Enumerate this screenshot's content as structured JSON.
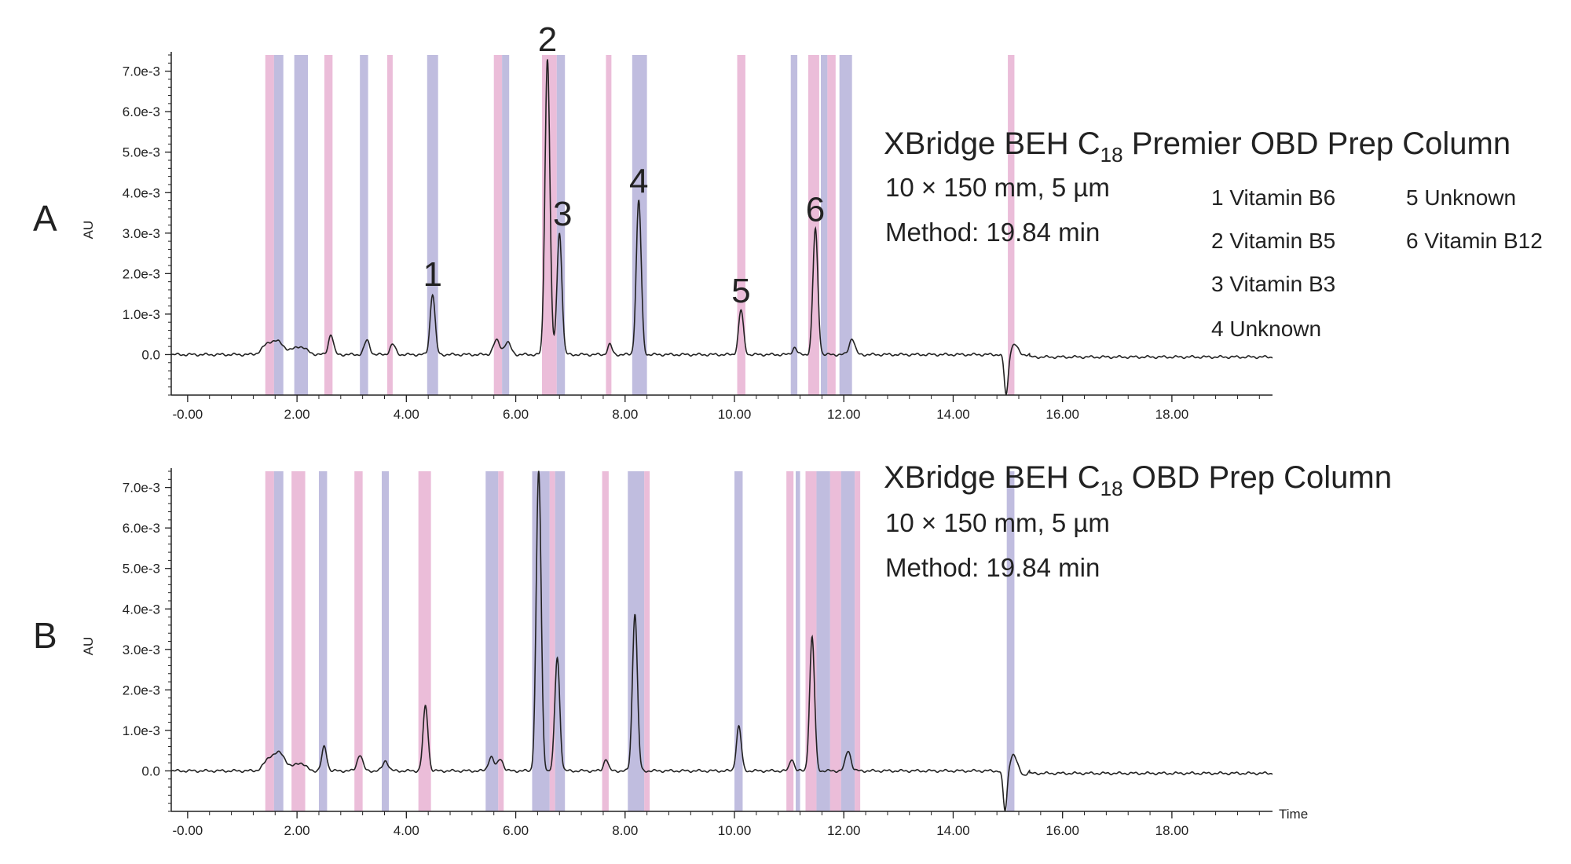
{
  "colors": {
    "pink": "#e9b6d5",
    "purple": "#b9b6dc",
    "trace": "#222222"
  },
  "legend": [
    "1 Vitamin B6",
    "2 Vitamin B5",
    "3 Vitamin B3",
    "4 Unknown",
    "5 Unknown",
    "6 Vitamin B12"
  ],
  "chart_data": [
    {
      "type": "line",
      "panel": "A",
      "ylabel": "AU",
      "xlabel": "",
      "column": {
        "title_pre": "XBridge BEH C",
        "title_sub": "18",
        "title_post": " Premier OBD Prep Column",
        "size": "10 × 150 mm, 5 µm",
        "method": "Method: 19.84 min"
      },
      "xlim": [
        -0.3,
        19.84
      ],
      "ylim": [
        -0.001,
        0.0074
      ],
      "x_ticks": [
        0,
        2,
        4,
        6,
        8,
        10,
        12,
        14,
        16,
        18
      ],
      "x_tick_labels": [
        "-0.00",
        "2.00",
        "4.00",
        "6.00",
        "8.00",
        "10.00",
        "12.00",
        "14.00",
        "16.00",
        "18.00"
      ],
      "y_ticks": [
        0.0,
        0.001,
        0.002,
        0.003,
        0.004,
        0.005,
        0.006,
        0.007
      ],
      "y_tick_labels": [
        "0.0",
        "1.0e-3",
        "2.0e-3",
        "3.0e-3",
        "4.0e-3",
        "5.0e-3",
        "6.0e-3",
        "7.0e-3"
      ],
      "peaks": [
        {
          "label": "1",
          "x": 4.48,
          "y": 0.0015
        },
        {
          "label": "2",
          "x": 6.58,
          "y": 0.0073
        },
        {
          "label": "3",
          "x": 6.8,
          "y": 0.003
        },
        {
          "label": "4",
          "x": 8.25,
          "y": 0.0038
        },
        {
          "label": "5",
          "x": 10.12,
          "y": 0.0011
        },
        {
          "label": "6",
          "x": 11.48,
          "y": 0.0031
        }
      ],
      "minor_peaks": [
        {
          "x": 1.45,
          "y": 0.0002,
          "w": 0.1
        },
        {
          "x": 1.65,
          "y": 0.0003,
          "w": 0.12
        },
        {
          "x": 2.05,
          "y": 0.0002,
          "w": 0.12
        },
        {
          "x": 2.62,
          "y": 0.0005,
          "w": 0.045
        },
        {
          "x": 3.28,
          "y": 0.00035,
          "w": 0.05
        },
        {
          "x": 3.75,
          "y": 0.00025,
          "w": 0.05
        },
        {
          "x": 5.65,
          "y": 0.00035,
          "w": 0.06
        },
        {
          "x": 5.85,
          "y": 0.0003,
          "w": 0.06
        },
        {
          "x": 7.72,
          "y": 0.00025,
          "w": 0.04
        },
        {
          "x": 11.1,
          "y": 0.00018,
          "w": 0.04
        },
        {
          "x": 12.15,
          "y": 0.0004,
          "w": 0.05
        }
      ],
      "dips": [
        {
          "x": 14.97,
          "y": -0.001,
          "w": 0.035
        },
        {
          "x": 15.12,
          "y": 0.00025,
          "w": 0.06
        }
      ],
      "bands": [
        {
          "x0": 1.42,
          "x1": 1.58,
          "c": "pink"
        },
        {
          "x0": 1.58,
          "x1": 1.75,
          "c": "purple"
        },
        {
          "x0": 1.95,
          "x1": 2.2,
          "c": "purple"
        },
        {
          "x0": 2.5,
          "x1": 2.65,
          "c": "pink"
        },
        {
          "x0": 3.15,
          "x1": 3.3,
          "c": "purple"
        },
        {
          "x0": 3.65,
          "x1": 3.75,
          "c": "pink"
        },
        {
          "x0": 4.38,
          "x1": 4.58,
          "c": "purple"
        },
        {
          "x0": 5.6,
          "x1": 5.75,
          "c": "pink"
        },
        {
          "x0": 5.75,
          "x1": 5.88,
          "c": "purple"
        },
        {
          "x0": 6.48,
          "x1": 6.75,
          "c": "pink"
        },
        {
          "x0": 6.75,
          "x1": 6.9,
          "c": "purple"
        },
        {
          "x0": 7.65,
          "x1": 7.75,
          "c": "pink"
        },
        {
          "x0": 8.13,
          "x1": 8.4,
          "c": "purple"
        },
        {
          "x0": 10.05,
          "x1": 10.2,
          "c": "pink"
        },
        {
          "x0": 11.03,
          "x1": 11.15,
          "c": "purple"
        },
        {
          "x0": 11.35,
          "x1": 11.55,
          "c": "pink"
        },
        {
          "x0": 11.58,
          "x1": 11.7,
          "c": "purple"
        },
        {
          "x0": 11.7,
          "x1": 11.85,
          "c": "pink"
        },
        {
          "x0": 11.92,
          "x1": 12.15,
          "c": "purple"
        },
        {
          "x0": 15.0,
          "x1": 15.12,
          "c": "pink"
        }
      ]
    },
    {
      "type": "line",
      "panel": "B",
      "ylabel": "AU",
      "xlabel": "Time",
      "column": {
        "title_pre": "XBridge BEH C",
        "title_sub": "18",
        "title_post": " OBD Prep Column",
        "size": "10 × 150 mm, 5 µm",
        "method": "Method: 19.84 min"
      },
      "xlim": [
        -0.3,
        19.84
      ],
      "ylim": [
        -0.001,
        0.0074
      ],
      "x_ticks": [
        0,
        2,
        4,
        6,
        8,
        10,
        12,
        14,
        16,
        18
      ],
      "x_tick_labels": [
        "-0.00",
        "2.00",
        "4.00",
        "6.00",
        "8.00",
        "10.00",
        "12.00",
        "14.00",
        "16.00",
        "18.00"
      ],
      "y_ticks": [
        0.0,
        0.001,
        0.002,
        0.003,
        0.004,
        0.005,
        0.006,
        0.007
      ],
      "y_tick_labels": [
        "0.0",
        "1.0e-3",
        "2.0e-3",
        "3.0e-3",
        "4.0e-3",
        "5.0e-3",
        "6.0e-3",
        "7.0e-3"
      ],
      "peaks": [
        {
          "label": "",
          "x": 4.35,
          "y": 0.0016
        },
        {
          "label": "",
          "x": 6.42,
          "y": 0.0074
        },
        {
          "label": "",
          "x": 6.76,
          "y": 0.0028
        },
        {
          "label": "",
          "x": 8.18,
          "y": 0.0039
        },
        {
          "label": "",
          "x": 10.08,
          "y": 0.0011
        },
        {
          "label": "",
          "x": 11.42,
          "y": 0.0033
        }
      ],
      "minor_peaks": [
        {
          "x": 1.5,
          "y": 0.0003,
          "w": 0.1
        },
        {
          "x": 1.7,
          "y": 0.0004,
          "w": 0.1
        },
        {
          "x": 2.05,
          "y": 0.0002,
          "w": 0.1
        },
        {
          "x": 2.5,
          "y": 0.0006,
          "w": 0.045
        },
        {
          "x": 3.15,
          "y": 0.0004,
          "w": 0.05
        },
        {
          "x": 3.62,
          "y": 0.00025,
          "w": 0.05
        },
        {
          "x": 5.55,
          "y": 0.00035,
          "w": 0.05
        },
        {
          "x": 5.72,
          "y": 0.0003,
          "w": 0.05
        },
        {
          "x": 7.65,
          "y": 0.0003,
          "w": 0.04
        },
        {
          "x": 11.05,
          "y": 0.0003,
          "w": 0.04
        },
        {
          "x": 12.08,
          "y": 0.0005,
          "w": 0.05
        }
      ],
      "dips": [
        {
          "x": 14.95,
          "y": -0.001,
          "w": 0.035
        },
        {
          "x": 15.1,
          "y": 0.0004,
          "w": 0.06
        },
        {
          "x": 15.3,
          "y": -0.0001,
          "w": 0.05
        }
      ],
      "bands": [
        {
          "x0": 1.42,
          "x1": 1.58,
          "c": "pink"
        },
        {
          "x0": 1.58,
          "x1": 1.75,
          "c": "purple"
        },
        {
          "x0": 1.9,
          "x1": 2.15,
          "c": "pink"
        },
        {
          "x0": 2.4,
          "x1": 2.55,
          "c": "purple"
        },
        {
          "x0": 3.05,
          "x1": 3.2,
          "c": "pink"
        },
        {
          "x0": 3.55,
          "x1": 3.68,
          "c": "purple"
        },
        {
          "x0": 4.22,
          "x1": 4.45,
          "c": "pink"
        },
        {
          "x0": 5.45,
          "x1": 5.68,
          "c": "purple"
        },
        {
          "x0": 5.68,
          "x1": 5.78,
          "c": "pink"
        },
        {
          "x0": 6.3,
          "x1": 6.62,
          "c": "purple"
        },
        {
          "x0": 6.62,
          "x1": 6.72,
          "c": "pink"
        },
        {
          "x0": 6.72,
          "x1": 6.9,
          "c": "purple"
        },
        {
          "x0": 7.58,
          "x1": 7.7,
          "c": "pink"
        },
        {
          "x0": 8.05,
          "x1": 8.35,
          "c": "purple"
        },
        {
          "x0": 8.35,
          "x1": 8.45,
          "c": "pink"
        },
        {
          "x0": 10.0,
          "x1": 10.15,
          "c": "purple"
        },
        {
          "x0": 10.95,
          "x1": 11.08,
          "c": "pink"
        },
        {
          "x0": 11.12,
          "x1": 11.2,
          "c": "purple"
        },
        {
          "x0": 11.3,
          "x1": 11.5,
          "c": "pink"
        },
        {
          "x0": 11.5,
          "x1": 11.75,
          "c": "purple"
        },
        {
          "x0": 11.75,
          "x1": 11.95,
          "c": "pink"
        },
        {
          "x0": 11.95,
          "x1": 12.2,
          "c": "purple"
        },
        {
          "x0": 12.2,
          "x1": 12.3,
          "c": "pink"
        },
        {
          "x0": 14.98,
          "x1": 15.12,
          "c": "purple"
        }
      ]
    }
  ]
}
